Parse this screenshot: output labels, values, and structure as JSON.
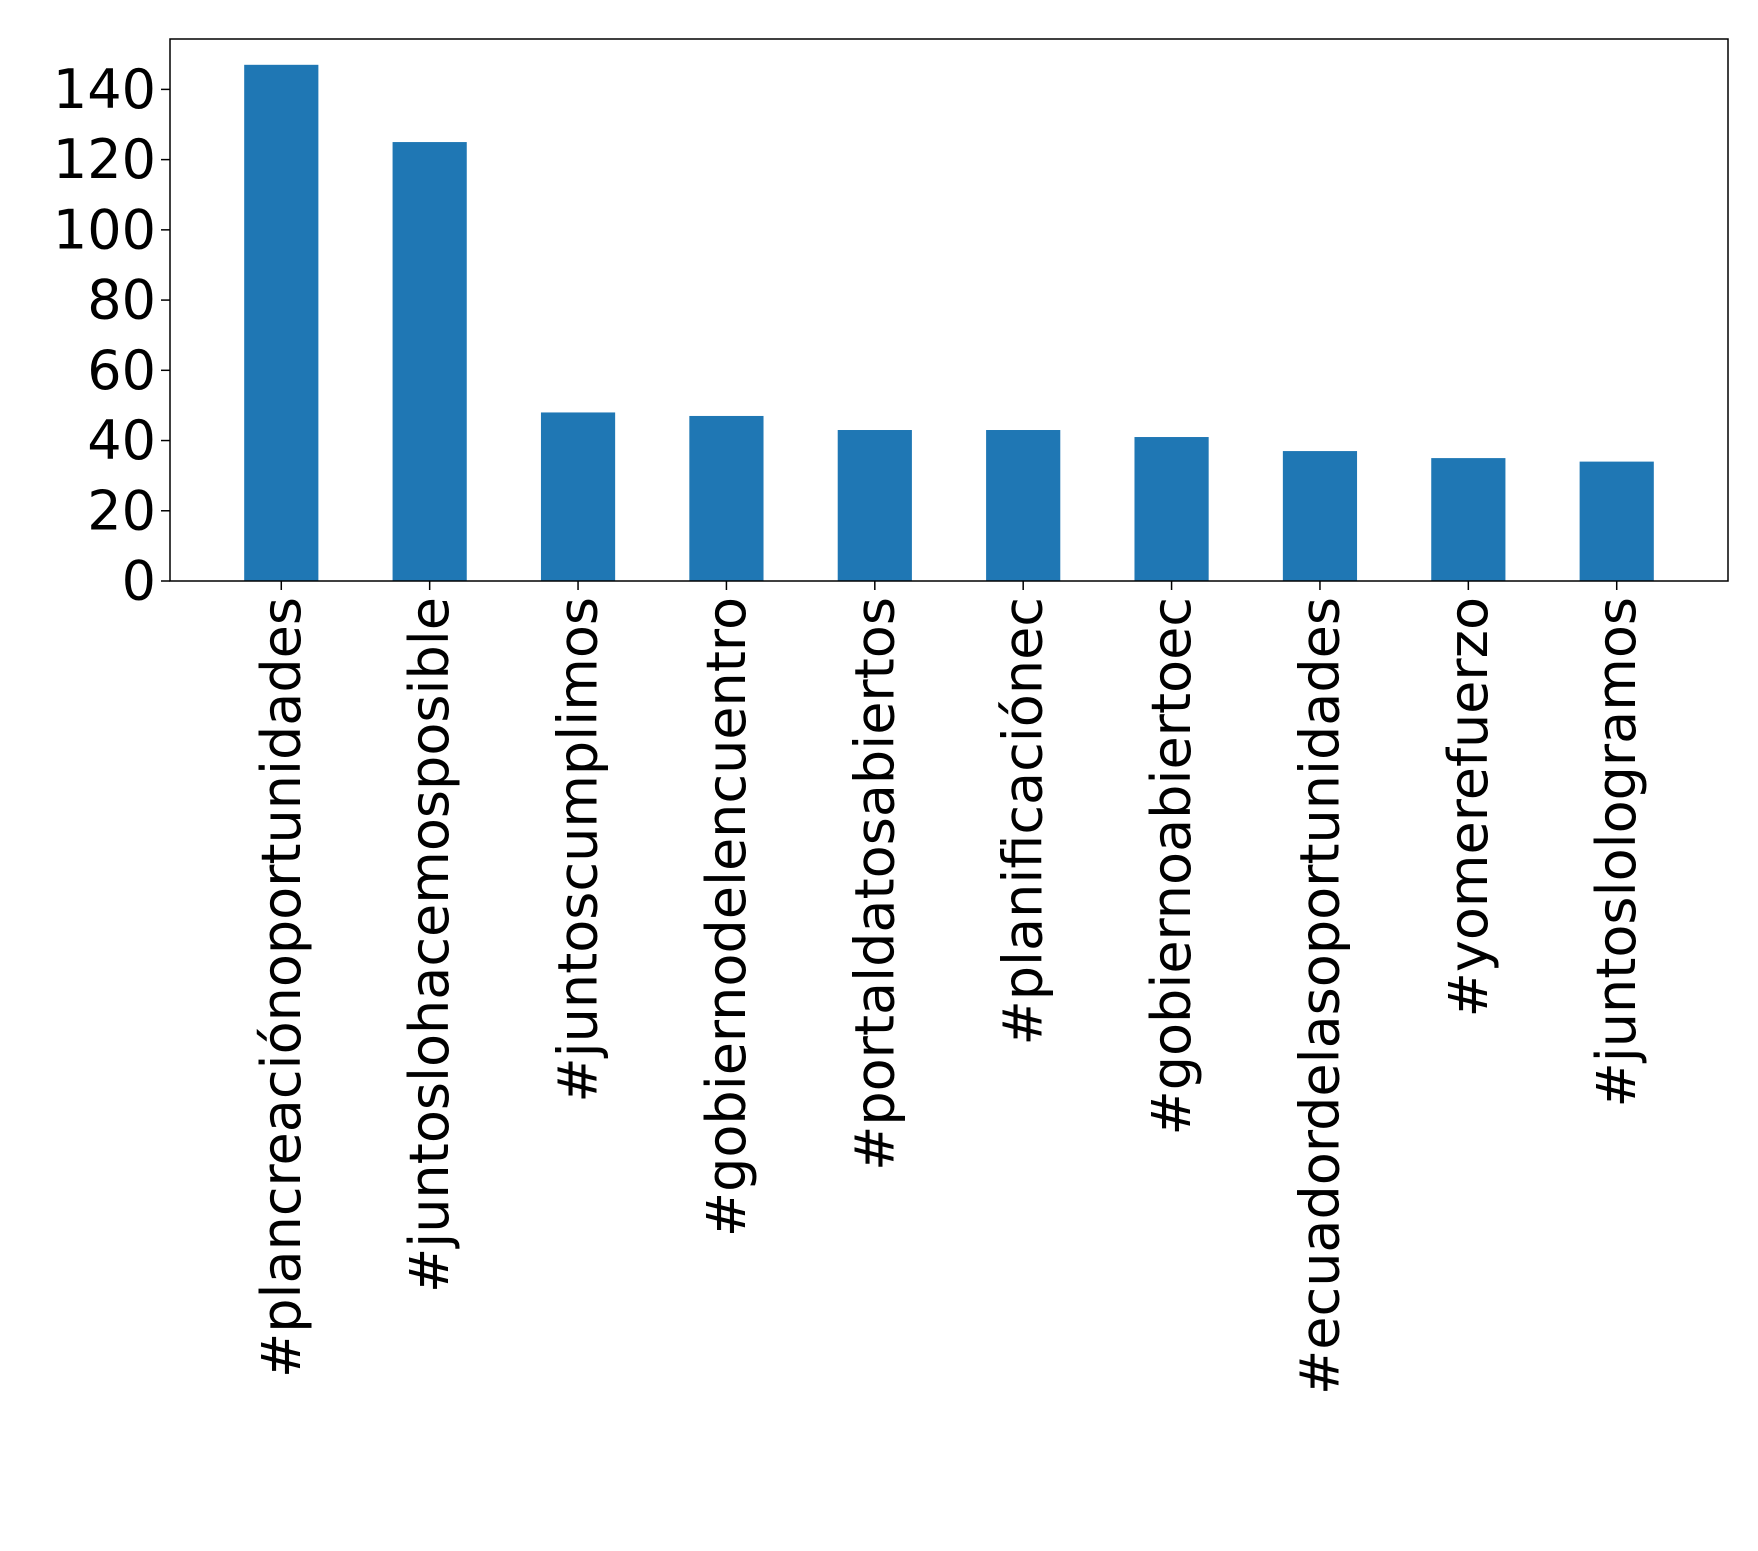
{
  "chart_data": {
    "type": "bar",
    "categories": [
      "#plancreaciónoportunidades",
      "#juntoslohacemosposible",
      "#juntoscumplimos",
      "#gobiernodelencuentro",
      "#portaldatosabiertos",
      "#planificaciónec",
      "#gobiernoabiertoec",
      "#ecuadordelasoportunidades",
      "#yomerefuerzo",
      "#juntoslologramos"
    ],
    "values": [
      147,
      125,
      48,
      47,
      43,
      43,
      41,
      37,
      35,
      34
    ],
    "title": "",
    "xlabel": "",
    "ylabel": "",
    "ylim": [
      0,
      154.35
    ],
    "yticks": [
      "0",
      "20",
      "40",
      "60",
      "80",
      "100",
      "120",
      "140"
    ],
    "grid": false,
    "legend": "none",
    "colors": {
      "bar": "#1f77b4",
      "axis": "#000000",
      "background": "#ffffff"
    }
  }
}
